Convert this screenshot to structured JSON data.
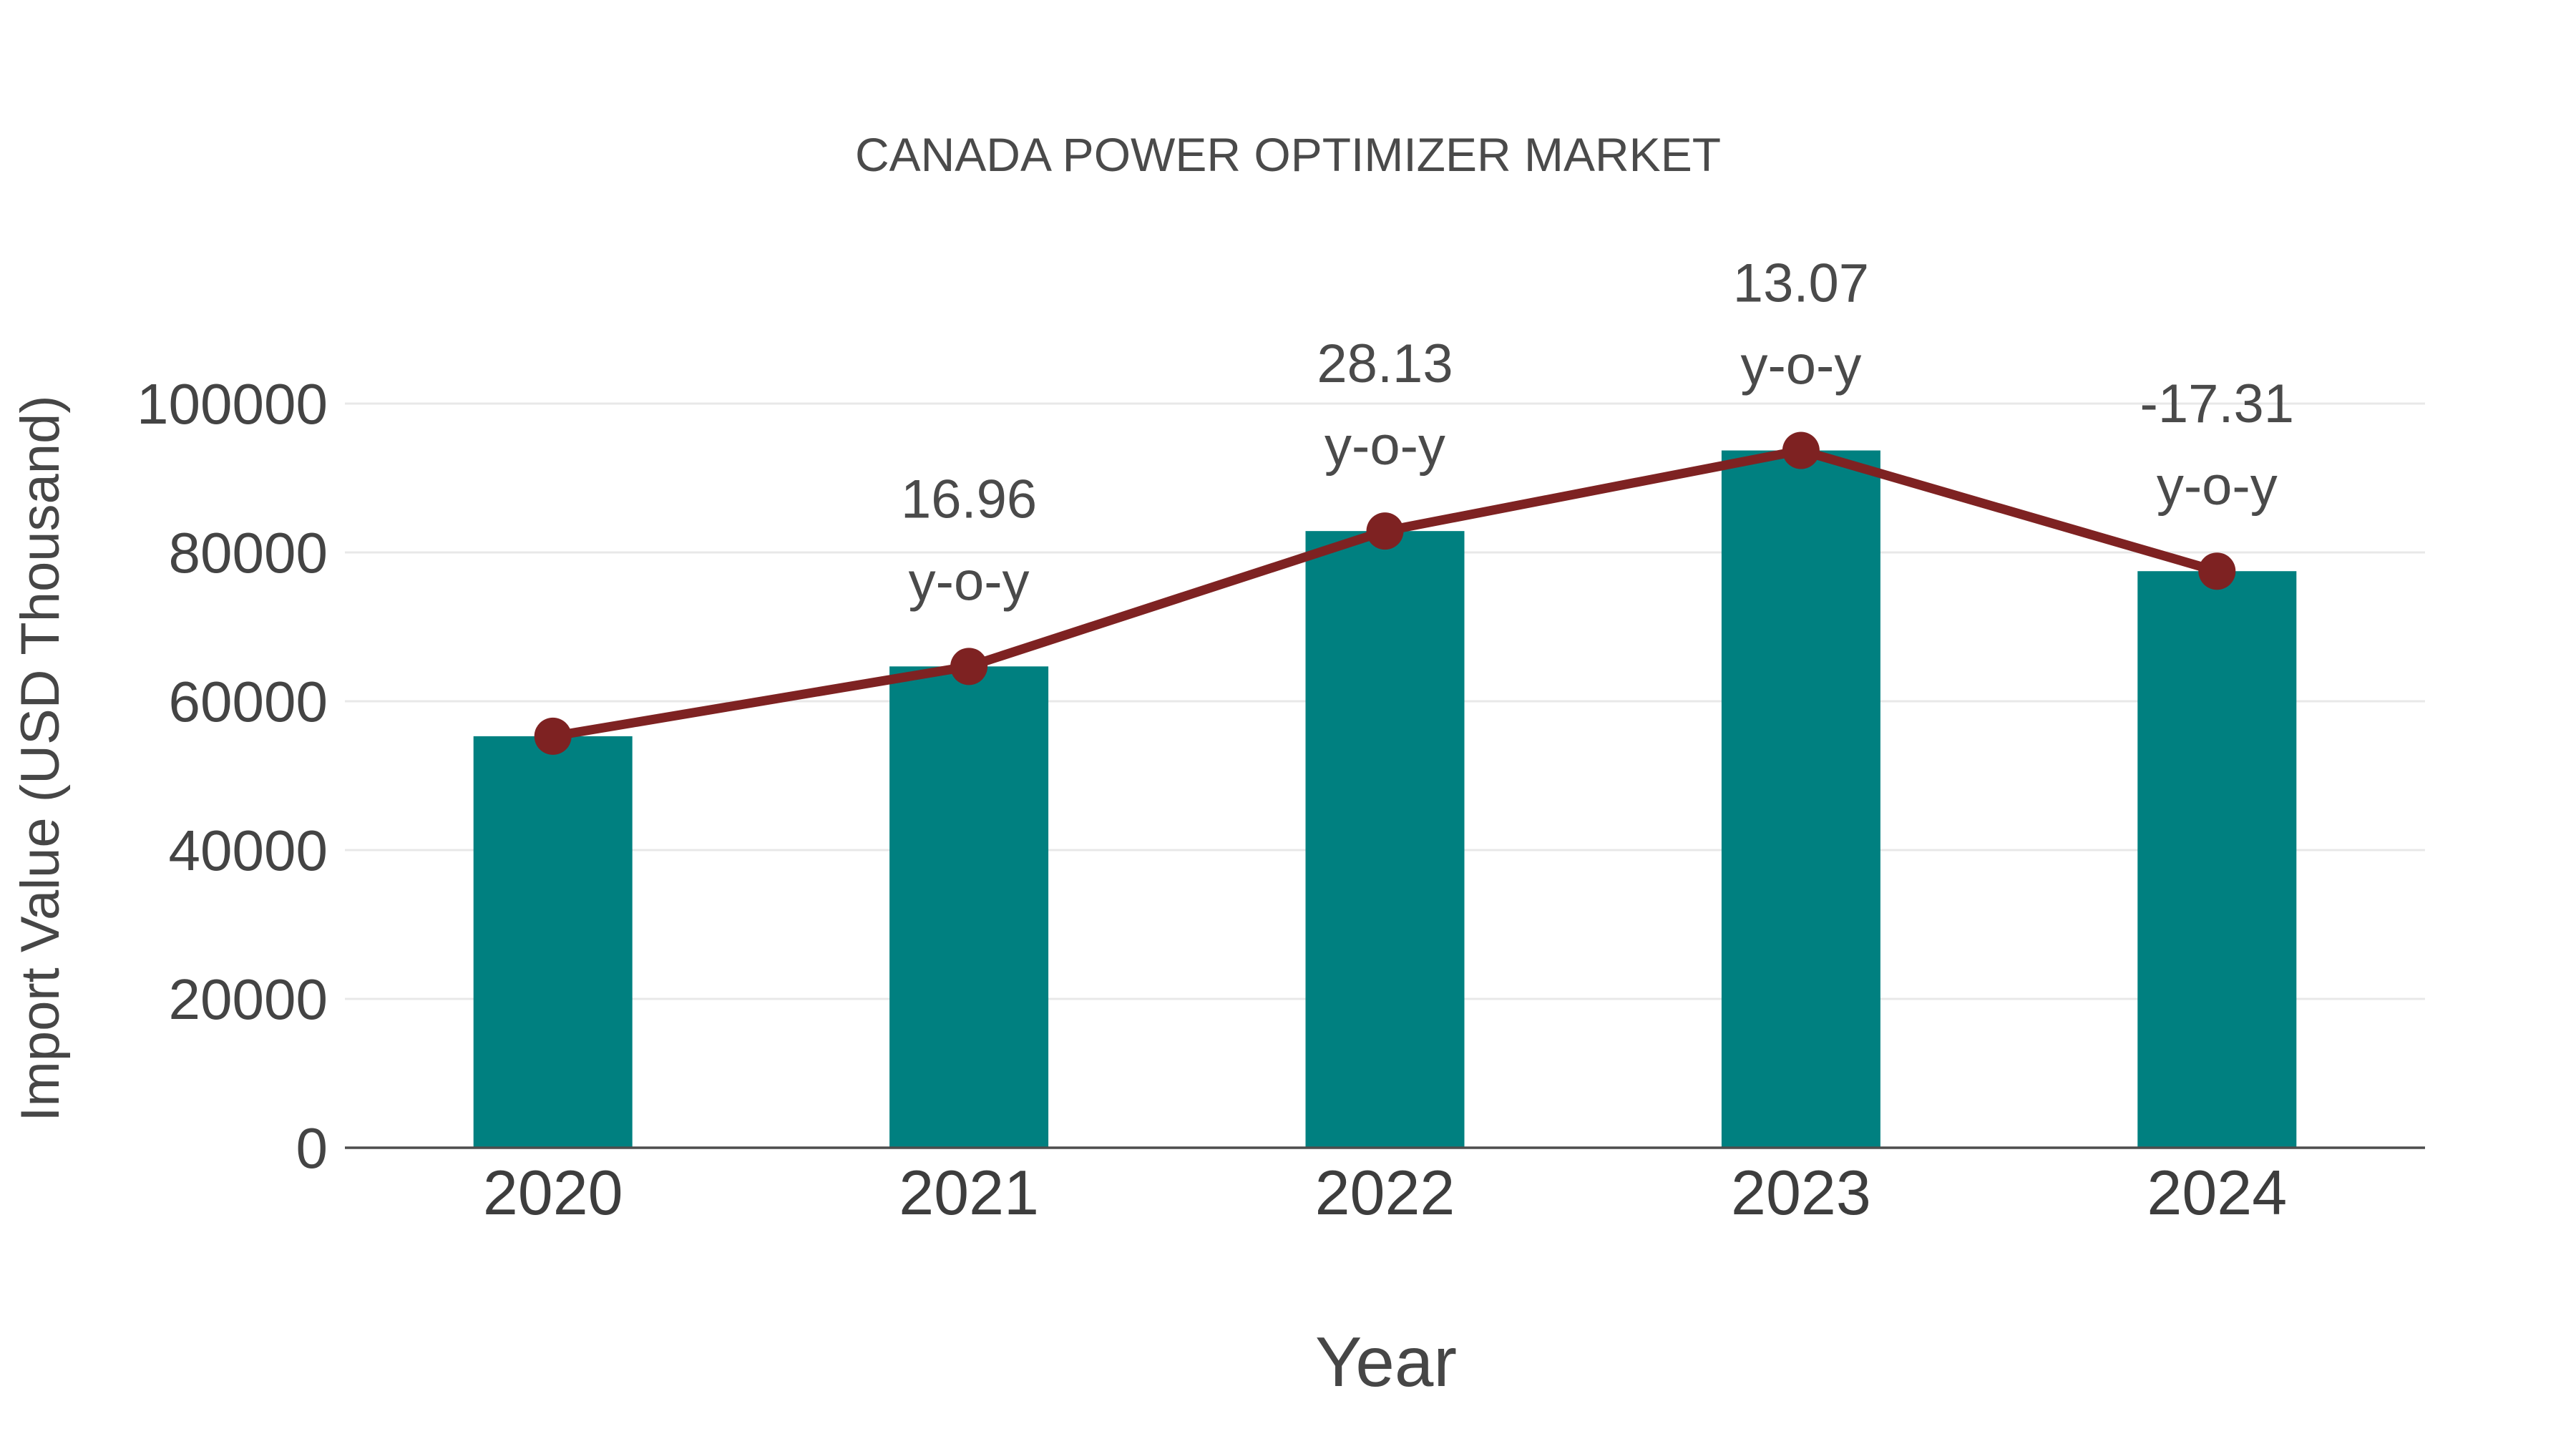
{
  "page": {
    "background": "#ffffff"
  },
  "chart_data": {
    "type": "bar",
    "subtype": "bar-with-line-overlay",
    "title": "CANADA POWER OPTIMIZER MARKET",
    "xlabel": "Year",
    "ylabel": "Import Value (USD Thousand)",
    "categories": [
      "2020",
      "2021",
      "2022",
      "2023",
      "2024"
    ],
    "series": [
      {
        "name": "Import Value (USD Thousand)",
        "type": "bar",
        "color": "#008080",
        "values": [
          55300,
          64680,
          82870,
          93700,
          77480
        ]
      },
      {
        "name": "y-o-y trend line",
        "type": "line",
        "color": "#7e2222",
        "marker": "circle",
        "values": [
          55300,
          64680,
          82870,
          93700,
          77480
        ]
      }
    ],
    "yoy_percent": [
      null,
      16.96,
      28.13,
      13.07,
      -17.31
    ],
    "annotations": [
      {
        "category": "2021",
        "lines": [
          "16.96",
          "y-o-y"
        ]
      },
      {
        "category": "2022",
        "lines": [
          "28.13",
          "y-o-y"
        ]
      },
      {
        "category": "2023",
        "lines": [
          "13.07",
          "y-o-y"
        ]
      },
      {
        "category": "2024",
        "lines": [
          "-17.31",
          "y-o-y"
        ]
      }
    ],
    "yticks": [
      0,
      20000,
      40000,
      60000,
      80000,
      100000
    ],
    "ylim": [
      0,
      100000
    ],
    "grid": "horizontal-only",
    "legend_position": "none",
    "colors": {
      "bar": "#008080",
      "line": "#7e2222",
      "marker": "#7e2222",
      "title_text": "#4a4a4a",
      "tick_text": "#444444",
      "year_text": "#3d3d3d",
      "annotation_text": "#4a4a4a",
      "gridline": "#e8e8e8",
      "axis_line": "#4d4d4d",
      "background": "#ffffff"
    }
  }
}
